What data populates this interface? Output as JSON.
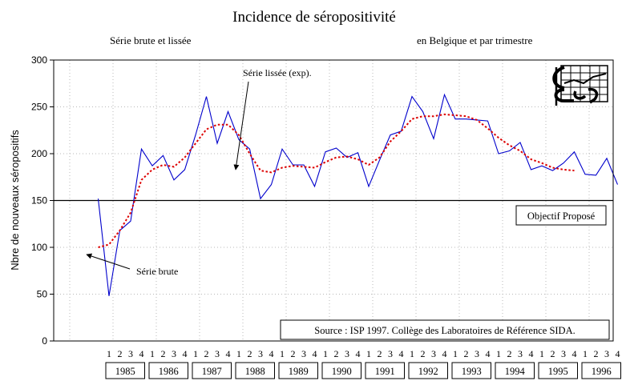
{
  "chart_data": {
    "type": "line",
    "title": "Incidence de séropositivité",
    "subtitle_left": "Série brute et lissée",
    "subtitle_right": "en Belgique et par trimestre",
    "ylabel": "Nbre de nouveaux séropositifs",
    "xlabel": "",
    "ylim": [
      0,
      300
    ],
    "y_ticks": [
      "0",
      "50",
      "100",
      "150",
      "200",
      "250",
      "300"
    ],
    "grid": true,
    "quarter_labels": [
      "1",
      "2",
      "3",
      "4"
    ],
    "years": [
      "1985",
      "1986",
      "1987",
      "1988",
      "1989",
      "1990",
      "1991",
      "1992",
      "1993",
      "1994",
      "1995",
      "1996"
    ],
    "series": [
      {
        "role": "brute",
        "color": "#0000cc",
        "values": [
          null,
          null,
          null,
          152,
          48,
          118,
          128,
          205,
          187,
          198,
          172,
          183,
          220,
          261,
          211,
          245,
          215,
          205,
          152,
          167,
          205,
          188,
          188,
          165,
          202,
          206,
          196,
          201,
          165,
          193,
          220,
          224,
          261,
          245,
          216,
          263,
          237,
          237,
          236,
          235,
          200,
          203,
          212,
          183,
          187,
          182,
          190,
          202,
          178,
          177,
          195,
          167
        ]
      },
      {
        "role": "lissee",
        "color": "#dd0000",
        "values": [
          null,
          null,
          null,
          100,
          103,
          118,
          137,
          172,
          183,
          188,
          186,
          196,
          211,
          226,
          231,
          231,
          220,
          200,
          182,
          180,
          185,
          187,
          186,
          185,
          191,
          196,
          197,
          194,
          188,
          196,
          213,
          224,
          237,
          240,
          240,
          242,
          241,
          240,
          236,
          227,
          217,
          209,
          203,
          194,
          190,
          185,
          183,
          182,
          null,
          null,
          null,
          null
        ]
      }
    ],
    "reference_line": {
      "value": 150,
      "label": "Objectif Proposé"
    },
    "annotations": {
      "smoothed_label": "Série lissée (exp).",
      "raw_label": "Série brute",
      "source": "Source : ISP 1997.  Collège des Laboratoires de Référence SIDA."
    }
  }
}
